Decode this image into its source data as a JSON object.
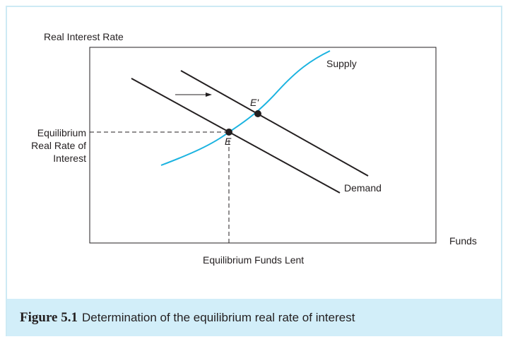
{
  "diagram": {
    "y_axis_label": "Real Interest Rate",
    "x_axis_label": "Funds",
    "equilibrium_rate_label": "Equilibrium Real Rate of Interest",
    "equilibrium_funds_label": "Equilibrium Funds Lent",
    "supply_label": "Supply",
    "demand_label": "Demand",
    "point_e_label": "E",
    "point_e_prime_label": "E'",
    "colors": {
      "supply_curve": "#1bb3e0",
      "demand_curve": "#231f20",
      "frame_border": "#cdeaf4",
      "caption_background": "#d2eef9"
    }
  },
  "caption": {
    "figure_number": "Figure 5.1",
    "text": "Determination of the equilibrium real rate of interest"
  }
}
